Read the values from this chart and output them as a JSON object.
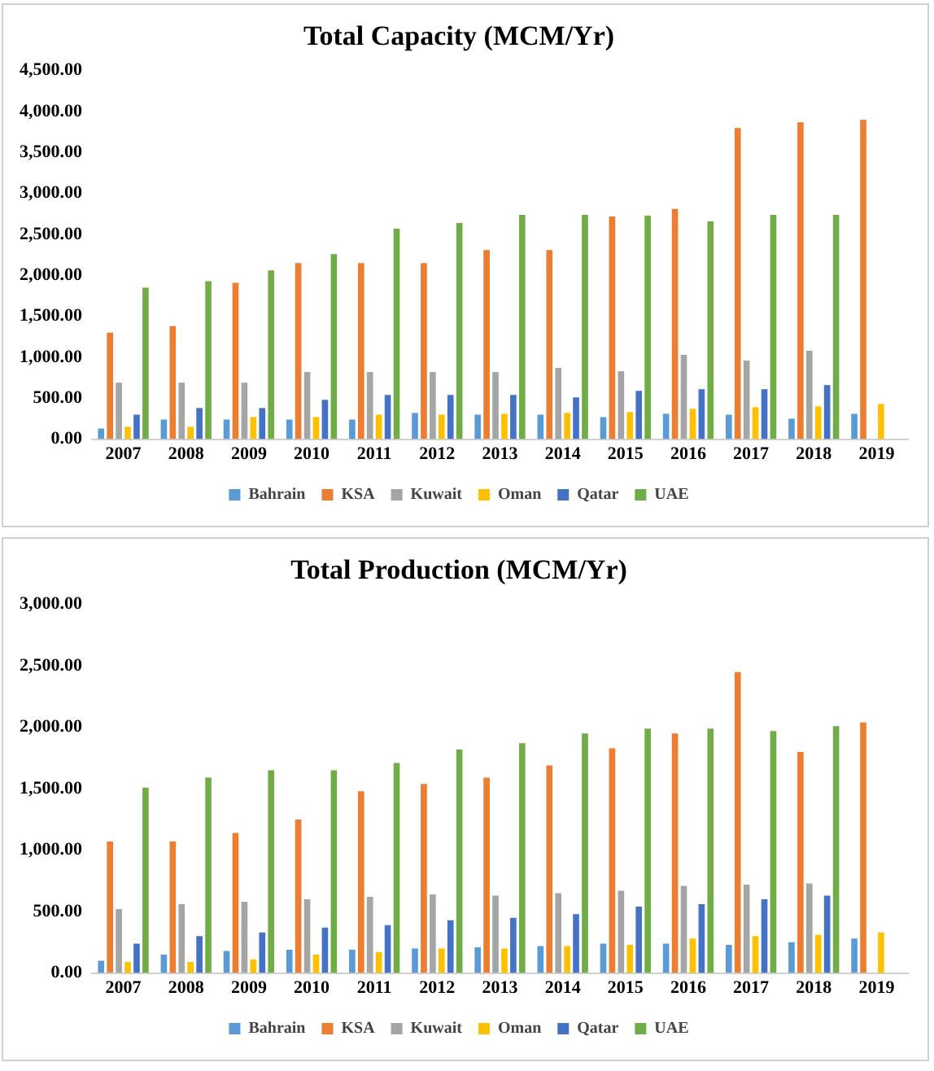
{
  "chart_data": [
    {
      "type": "bar",
      "title": "Total Capacity (MCM/Yr)",
      "categories": [
        "2007",
        "2008",
        "2009",
        "2010",
        "2011",
        "2012",
        "2013",
        "2014",
        "2015",
        "2016",
        "2017",
        "2018",
        "2019"
      ],
      "series": [
        {
          "name": "Bahrain",
          "color": "#5b9bd5",
          "values": [
            130,
            240,
            240,
            240,
            240,
            320,
            300,
            300,
            270,
            310,
            300,
            250,
            310
          ]
        },
        {
          "name": "KSA",
          "color": "#ed7d31",
          "values": [
            1300,
            1380,
            1910,
            2150,
            2150,
            2150,
            2310,
            2310,
            2720,
            2810,
            3800,
            3870,
            3900
          ]
        },
        {
          "name": "Kuwait",
          "color": "#a5a5a5",
          "values": [
            690,
            690,
            690,
            820,
            820,
            820,
            820,
            870,
            830,
            1030,
            960,
            1080,
            null
          ]
        },
        {
          "name": "Oman",
          "color": "#ffc000",
          "values": [
            150,
            150,
            270,
            270,
            300,
            300,
            310,
            320,
            330,
            370,
            390,
            400,
            430
          ]
        },
        {
          "name": "Qatar",
          "color": "#4472c4",
          "values": [
            300,
            380,
            380,
            480,
            540,
            540,
            540,
            510,
            590,
            610,
            610,
            660,
            null
          ]
        },
        {
          "name": "UAE",
          "color": "#70ad47",
          "values": [
            1850,
            1930,
            2060,
            2260,
            2570,
            2640,
            2740,
            2740,
            2730,
            2660,
            2740,
            2740,
            null
          ]
        }
      ],
      "ylim": [
        0,
        4500
      ],
      "yticks": [
        {
          "value": 0,
          "label": "0.00"
        },
        {
          "value": 500,
          "label": "500.00"
        },
        {
          "value": 1000,
          "label": "1,000.00"
        },
        {
          "value": 1500,
          "label": "1,500.00"
        },
        {
          "value": 2000,
          "label": "2,000.00"
        },
        {
          "value": 2500,
          "label": "2,500.00"
        },
        {
          "value": 3000,
          "label": "3,000.00"
        },
        {
          "value": 3500,
          "label": "3,500.00"
        },
        {
          "value": 4000,
          "label": "4,000.00"
        },
        {
          "value": 4500,
          "label": "4,500.00"
        }
      ],
      "grid": false,
      "legend": "bottom"
    },
    {
      "type": "bar",
      "title": "Total Production (MCM/Yr)",
      "categories": [
        "2007",
        "2008",
        "2009",
        "2010",
        "2011",
        "2012",
        "2013",
        "2014",
        "2015",
        "2016",
        "2017",
        "2018",
        "2019"
      ],
      "series": [
        {
          "name": "Bahrain",
          "color": "#5b9bd5",
          "values": [
            100,
            150,
            180,
            190,
            190,
            200,
            210,
            220,
            240,
            240,
            230,
            250,
            280
          ]
        },
        {
          "name": "KSA",
          "color": "#ed7d31",
          "values": [
            1070,
            1070,
            1140,
            1250,
            1480,
            1540,
            1590,
            1690,
            1830,
            1950,
            2450,
            1800,
            2040
          ]
        },
        {
          "name": "Kuwait",
          "color": "#a5a5a5",
          "values": [
            520,
            560,
            580,
            600,
            620,
            640,
            630,
            650,
            670,
            710,
            720,
            730,
            null
          ]
        },
        {
          "name": "Oman",
          "color": "#ffc000",
          "values": [
            90,
            90,
            110,
            150,
            170,
            200,
            200,
            220,
            230,
            280,
            300,
            310,
            330
          ]
        },
        {
          "name": "Qatar",
          "color": "#4472c4",
          "values": [
            240,
            300,
            330,
            370,
            390,
            430,
            450,
            480,
            540,
            560,
            600,
            630,
            null
          ]
        },
        {
          "name": "UAE",
          "color": "#70ad47",
          "values": [
            1510,
            1590,
            1650,
            1650,
            1710,
            1820,
            1870,
            1950,
            1990,
            1990,
            1970,
            2010,
            null
          ]
        }
      ],
      "ylim": [
        0,
        3000
      ],
      "yticks": [
        {
          "value": 0,
          "label": "0.00"
        },
        {
          "value": 500,
          "label": "500.00"
        },
        {
          "value": 1000,
          "label": "1,000.00"
        },
        {
          "value": 1500,
          "label": "1,500.00"
        },
        {
          "value": 2000,
          "label": "2,000.00"
        },
        {
          "value": 2500,
          "label": "2,500.00"
        },
        {
          "value": 3000,
          "label": "3,000.00"
        }
      ],
      "grid": false,
      "legend": "bottom"
    }
  ]
}
